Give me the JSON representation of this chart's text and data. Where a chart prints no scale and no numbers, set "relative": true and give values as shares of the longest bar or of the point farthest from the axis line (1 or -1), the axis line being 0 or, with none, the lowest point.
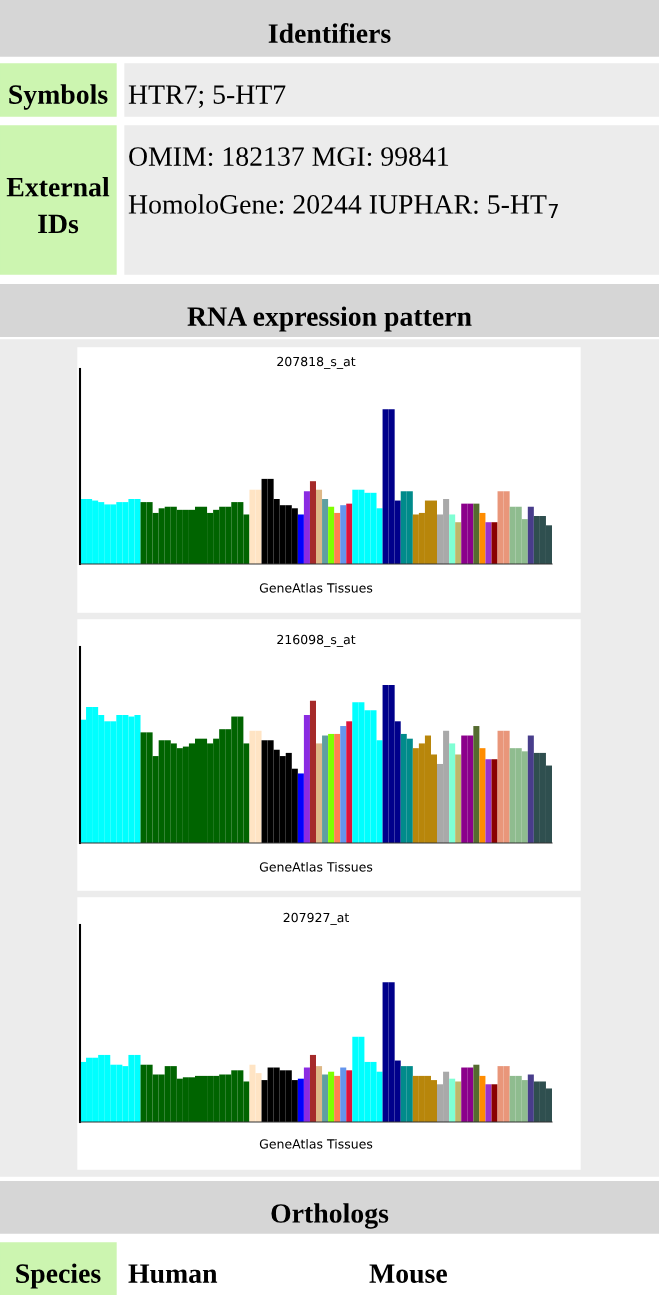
{
  "chart_data": [
    {
      "type": "other",
      "title": "Identifiers",
      "annotations": [
        "Symbols",
        "HTR7; 5-HT7",
        "External IDs",
        "OMIM: 182137 MGI: 99841",
        "HomoloGene: 20244 IUPHAR: 5-HT$_{7}$"
      ]
    },
    {
      "type": "other",
      "title": "RNA expression pattern"
    },
    {
      "type": "bar",
      "title": "207818_s_at",
      "xlabel": "GeneAtlas Tissues",
      "relative": true,
      "categories": [
        null,
        null,
        null,
        null,
        null,
        null,
        null,
        null,
        null,
        null,
        null,
        null,
        null,
        null,
        null,
        null,
        null,
        null,
        null,
        null,
        null,
        null,
        null,
        null,
        null,
        null,
        null,
        null,
        null,
        null,
        null,
        null,
        null,
        null,
        null,
        null,
        null,
        null,
        null,
        null,
        null,
        null,
        null,
        null,
        null,
        null,
        null,
        null,
        null,
        null,
        null,
        null,
        null,
        null,
        null,
        null,
        null,
        null,
        null,
        null,
        null,
        null,
        null,
        null,
        null,
        null,
        null,
        null,
        null,
        null,
        null,
        null,
        null,
        null,
        null,
        null,
        null,
        null
      ],
      "values": [
        0.42,
        0.42,
        0.41,
        0.4,
        0.385,
        0.385,
        0.4,
        0.4,
        0.42,
        0.42,
        0.4,
        0.4,
        0.33,
        0.36,
        0.37,
        0.37,
        0.35,
        0.35,
        0.35,
        0.37,
        0.37,
        0.33,
        0.35,
        0.37,
        0.37,
        0.4,
        0.4,
        0.32,
        0.48,
        0.48,
        0.55,
        0.55,
        0.42,
        0.38,
        0.38,
        0.36,
        0.32,
        0.47,
        0.535,
        0.48,
        0.42,
        0.37,
        0.33,
        0.38,
        0.39,
        0.48,
        0.48,
        0.46,
        0.46,
        0.36,
        1,
        1,
        0.41,
        0.47,
        0.47,
        0.32,
        0.33,
        0.41,
        0.41,
        0.32,
        0.42,
        0.32,
        0.27,
        0.39,
        0.39,
        0.39,
        0.33,
        0.27,
        0.27,
        0.47,
        0.47,
        0.37,
        0.37,
        0.29,
        0.37,
        0.31,
        0.31,
        0.25
      ],
      "colors": [
        "#00ffff",
        "#00ffff",
        "#00ffff",
        "#00ffff",
        "#00ffff",
        "#00ffff",
        "#00ffff",
        "#00ffff",
        "#00ffff",
        "#00ffff",
        "#006400",
        "#006400",
        "#006400",
        "#006400",
        "#006400",
        "#006400",
        "#006400",
        "#006400",
        "#006400",
        "#006400",
        "#006400",
        "#006400",
        "#006400",
        "#006400",
        "#006400",
        "#006400",
        "#006400",
        "#006400",
        "#ffe4c4",
        "#ffe4c4",
        "#000000",
        "#000000",
        "#000000",
        "#000000",
        "#000000",
        "#000000",
        "#0000ff",
        "#8a2be2",
        "#a52a2a",
        "#deb887",
        "#5f9ea0",
        "#7fff00",
        "#ff7f50",
        "#6495ed",
        "#dc143c",
        "#00ffff",
        "#00ffff",
        "#00ffff",
        "#00ffff",
        "#00ffff",
        "#00008b",
        "#00008b",
        "#00008b",
        "#008b8b",
        "#008b8b",
        "#b8860b",
        "#b8860b",
        "#b8860b",
        "#b8860b",
        "#a9a9a9",
        "#a9a9a9",
        "#7fffd4",
        "#bdb76b",
        "#8b008b",
        "#8b008b",
        "#556b2f",
        "#ff8c00",
        "#9932cc",
        "#8b0000",
        "#e9967a",
        "#e9967a",
        "#8fbc8f",
        "#8fbc8f",
        "#8fbc8f",
        "#483d8b",
        "#2f4f4f",
        "#2f4f4f",
        "#2f4f4f"
      ]
    },
    {
      "type": "bar",
      "title": "216098_s_at",
      "xlabel": "GeneAtlas Tissues",
      "relative": true,
      "categories": [
        null,
        null,
        null,
        null,
        null,
        null,
        null,
        null,
        null,
        null,
        null,
        null,
        null,
        null,
        null,
        null,
        null,
        null,
        null,
        null,
        null,
        null,
        null,
        null,
        null,
        null,
        null,
        null,
        null,
        null,
        null,
        null,
        null,
        null,
        null,
        null,
        null,
        null,
        null,
        null,
        null,
        null,
        null,
        null,
        null,
        null,
        null,
        null,
        null,
        null,
        null,
        null,
        null,
        null,
        null,
        null,
        null,
        null,
        null,
        null,
        null,
        null,
        null,
        null,
        null,
        null,
        null,
        null,
        null,
        null,
        null,
        null,
        null,
        null,
        null,
        null,
        null,
        null
      ],
      "values": [
        0.78,
        0.86,
        0.86,
        0.81,
        0.77,
        0.77,
        0.81,
        0.81,
        0.8,
        0.81,
        0.7,
        0.7,
        0.55,
        0.65,
        0.65,
        0.63,
        0.6,
        0.61,
        0.63,
        0.66,
        0.66,
        0.63,
        0.66,
        0.72,
        0.72,
        0.8,
        0.8,
        0.63,
        0.71,
        0.71,
        0.65,
        0.65,
        0.59,
        0.55,
        0.57,
        0.47,
        0.44,
        0.81,
        0.9,
        0.63,
        0.68,
        0.69,
        0.69,
        0.74,
        0.77,
        0.89,
        0.89,
        0.84,
        0.84,
        0.65,
        1,
        1,
        0.77,
        0.69,
        0.66,
        0.6,
        0.63,
        0.68,
        0.56,
        0.5,
        0.71,
        0.63,
        0.56,
        0.68,
        0.68,
        0.74,
        0.6,
        0.53,
        0.53,
        0.71,
        0.71,
        0.6,
        0.6,
        0.58,
        0.68,
        0.57,
        0.57,
        0.49
      ],
      "colors": [
        "#00ffff",
        "#00ffff",
        "#00ffff",
        "#00ffff",
        "#00ffff",
        "#00ffff",
        "#00ffff",
        "#00ffff",
        "#00ffff",
        "#00ffff",
        "#006400",
        "#006400",
        "#006400",
        "#006400",
        "#006400",
        "#006400",
        "#006400",
        "#006400",
        "#006400",
        "#006400",
        "#006400",
        "#006400",
        "#006400",
        "#006400",
        "#006400",
        "#006400",
        "#006400",
        "#006400",
        "#ffe4c4",
        "#ffe4c4",
        "#000000",
        "#000000",
        "#000000",
        "#000000",
        "#000000",
        "#000000",
        "#0000ff",
        "#8a2be2",
        "#a52a2a",
        "#deb887",
        "#5f9ea0",
        "#7fff00",
        "#ff7f50",
        "#6495ed",
        "#dc143c",
        "#00ffff",
        "#00ffff",
        "#00ffff",
        "#00ffff",
        "#00ffff",
        "#00008b",
        "#00008b",
        "#00008b",
        "#008b8b",
        "#008b8b",
        "#b8860b",
        "#b8860b",
        "#b8860b",
        "#b8860b",
        "#a9a9a9",
        "#a9a9a9",
        "#7fffd4",
        "#bdb76b",
        "#8b008b",
        "#8b008b",
        "#556b2f",
        "#ff8c00",
        "#9932cc",
        "#8b0000",
        "#e9967a",
        "#e9967a",
        "#8fbc8f",
        "#8fbc8f",
        "#8fbc8f",
        "#483d8b",
        "#2f4f4f",
        "#2f4f4f",
        "#2f4f4f"
      ]
    },
    {
      "type": "bar",
      "title": "207927_at",
      "xlabel": "GeneAtlas Tissues",
      "relative": true,
      "categories": [
        null,
        null,
        null,
        null,
        null,
        null,
        null,
        null,
        null,
        null,
        null,
        null,
        null,
        null,
        null,
        null,
        null,
        null,
        null,
        null,
        null,
        null,
        null,
        null,
        null,
        null,
        null,
        null,
        null,
        null,
        null,
        null,
        null,
        null,
        null,
        null,
        null,
        null,
        null,
        null,
        null,
        null,
        null,
        null,
        null,
        null,
        null,
        null,
        null,
        null,
        null,
        null,
        null,
        null,
        null,
        null,
        null,
        null,
        null,
        null,
        null,
        null,
        null,
        null,
        null,
        null,
        null,
        null,
        null,
        null,
        null,
        null,
        null,
        null,
        null,
        null,
        null,
        null
      ],
      "values": [
        0.43,
        0.46,
        0.46,
        0.48,
        0.48,
        0.41,
        0.41,
        0.4,
        0.48,
        0.48,
        0.41,
        0.41,
        0.34,
        0.34,
        0.4,
        0.4,
        0.31,
        0.32,
        0.32,
        0.33,
        0.33,
        0.33,
        0.33,
        0.34,
        0.34,
        0.37,
        0.37,
        0.29,
        0.41,
        0.35,
        0.3,
        0.39,
        0.39,
        0.37,
        0.37,
        0.3,
        0.31,
        0.39,
        0.48,
        0.4,
        0.34,
        0.36,
        0.33,
        0.39,
        0.37,
        0.61,
        0.61,
        0.43,
        0.43,
        0.36,
        1,
        1,
        0.44,
        0.4,
        0.4,
        0.33,
        0.33,
        0.33,
        0.3,
        0.27,
        0.36,
        0.31,
        0.29,
        0.39,
        0.39,
        0.41,
        0.33,
        0.27,
        0.27,
        0.4,
        0.4,
        0.33,
        0.33,
        0.3,
        0.34,
        0.29,
        0.29,
        0.24
      ],
      "colors": [
        "#00ffff",
        "#00ffff",
        "#00ffff",
        "#00ffff",
        "#00ffff",
        "#00ffff",
        "#00ffff",
        "#00ffff",
        "#00ffff",
        "#00ffff",
        "#006400",
        "#006400",
        "#006400",
        "#006400",
        "#006400",
        "#006400",
        "#006400",
        "#006400",
        "#006400",
        "#006400",
        "#006400",
        "#006400",
        "#006400",
        "#006400",
        "#006400",
        "#006400",
        "#006400",
        "#006400",
        "#ffe4c4",
        "#ffe4c4",
        "#000000",
        "#000000",
        "#000000",
        "#000000",
        "#000000",
        "#000000",
        "#0000ff",
        "#8a2be2",
        "#a52a2a",
        "#deb887",
        "#5f9ea0",
        "#7fff00",
        "#ff7f50",
        "#6495ed",
        "#dc143c",
        "#00ffff",
        "#00ffff",
        "#00ffff",
        "#00ffff",
        "#00ffff",
        "#00008b",
        "#00008b",
        "#00008b",
        "#008b8b",
        "#008b8b",
        "#b8860b",
        "#b8860b",
        "#b8860b",
        "#b8860b",
        "#a9a9a9",
        "#a9a9a9",
        "#7fffd4",
        "#bdb76b",
        "#8b008b",
        "#8b008b",
        "#556b2f",
        "#ff8c00",
        "#9932cc",
        "#8b0000",
        "#e9967a",
        "#e9967a",
        "#8fbc8f",
        "#8fbc8f",
        "#8fbc8f",
        "#483d8b",
        "#2f4f4f",
        "#2f4f4f",
        "#2f4f4f"
      ]
    },
    {
      "type": "other",
      "title": "Orthologs",
      "annotations": [
        "Species",
        "Human",
        "Mouse"
      ]
    }
  ]
}
